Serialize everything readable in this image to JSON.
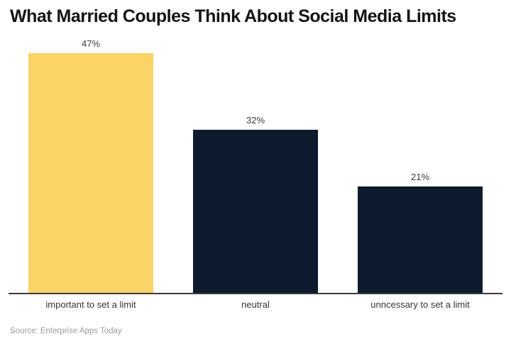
{
  "chart_data": {
    "type": "bar",
    "title": "What Married Couples Think About Social Media Limits",
    "categories": [
      "important to set a limit",
      "neutral",
      "unncessary to set a limit"
    ],
    "values": [
      47,
      32,
      21
    ],
    "value_labels": [
      "47%",
      "32%",
      "21%"
    ],
    "bar_colors": [
      "#FAD466",
      "#0E1A2D",
      "#0E1A2D"
    ],
    "accent_color": "#FAD466",
    "dark_color": "#0E1A2D",
    "axis_color": "#3a3a3a",
    "xlabel": "",
    "ylabel": "",
    "ylim": [
      0,
      50
    ],
    "grid": false,
    "legend": "none",
    "source": "Source: Enterprise Apps Today"
  }
}
